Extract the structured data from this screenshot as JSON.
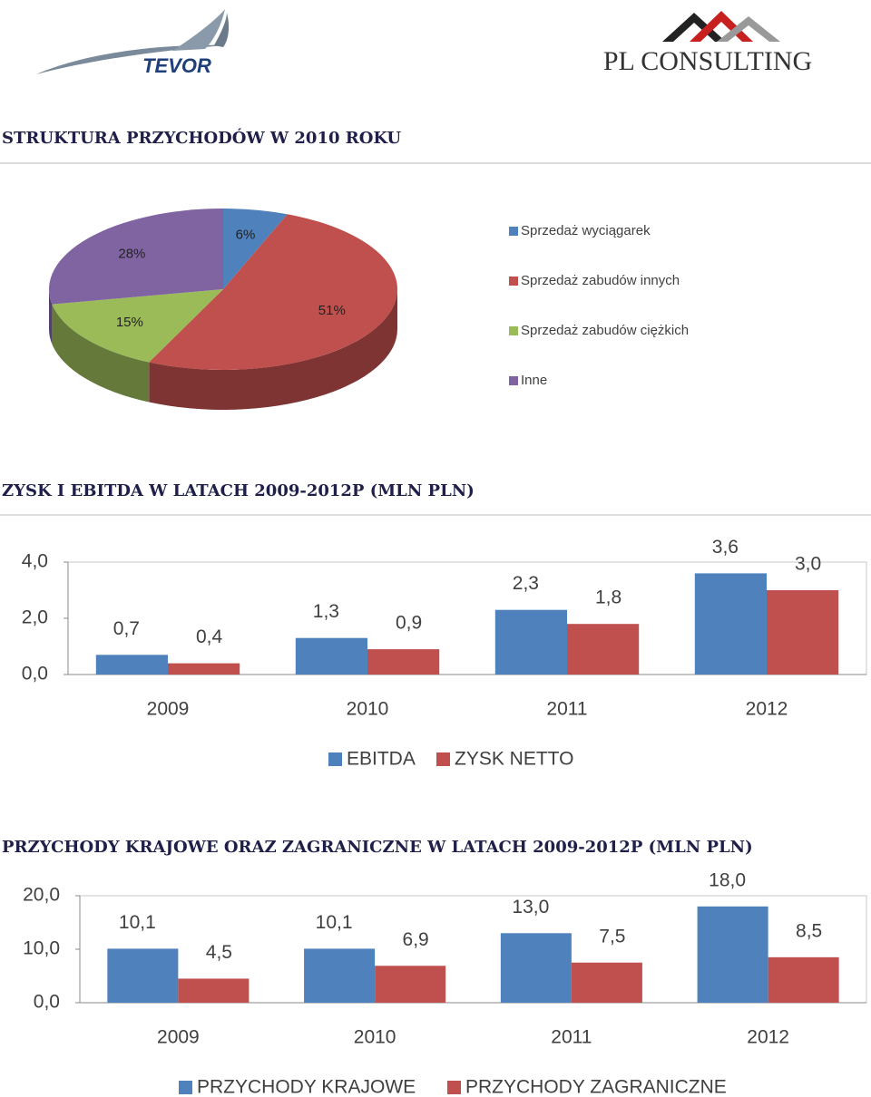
{
  "header": {
    "logo_left": "TEVOR",
    "logo_right": "PL CONSULTING"
  },
  "chart_data": [
    {
      "type": "pie",
      "title": "STRUKTURA PRZYCHODÓW W 2010 ROKU",
      "categories": [
        "Sprzedaż wyciągarek",
        "Sprzedaż zabudów innych",
        "Sprzedaż zabudów ciężkich",
        "Inne"
      ],
      "values": [
        6,
        51,
        15,
        28
      ],
      "value_labels": [
        "6%",
        "51%",
        "15%",
        "28%"
      ],
      "colors": [
        "#4f81bd",
        "#c0504d",
        "#9bbb59",
        "#8064a2"
      ],
      "legend": "right"
    },
    {
      "type": "bar",
      "title": "ZYSK I EBITDA W LATACH 2009-2012P (MLN PLN)",
      "categories": [
        "2009",
        "2010",
        "2011",
        "2012"
      ],
      "series": [
        {
          "name": "EBITDA",
          "color": "#4f81bd",
          "values": [
            0.7,
            1.3,
            2.3,
            3.6
          ],
          "value_labels": [
            "0,7",
            "1,3",
            "2,3",
            "3,6"
          ]
        },
        {
          "name": "ZYSK NETTO",
          "color": "#c0504d",
          "values": [
            0.4,
            0.9,
            1.8,
            3.0
          ],
          "value_labels": [
            "0,4",
            "0,9",
            "1,8",
            "3,0"
          ]
        }
      ],
      "ylim": [
        0,
        4
      ],
      "yticks": [
        {
          "value": 0,
          "label": "0,0"
        },
        {
          "value": 2,
          "label": "2,0"
        },
        {
          "value": 4,
          "label": "4,0"
        }
      ],
      "grid": false,
      "legend": "bottom"
    },
    {
      "type": "bar",
      "title": "PRZYCHODY KRAJOWE ORAZ ZAGRANICZNE W LATACH  2009-2012P (MLN PLN)",
      "categories": [
        "2009",
        "2010",
        "2011",
        "2012"
      ],
      "series": [
        {
          "name": "PRZYCHODY KRAJOWE",
          "color": "#4f81bd",
          "values": [
            10.1,
            10.1,
            13.0,
            18.0
          ],
          "value_labels": [
            "10,1",
            "10,1",
            "13,0",
            "18,0"
          ]
        },
        {
          "name": "PRZYCHODY ZAGRANICZNE",
          "color": "#c0504d",
          "values": [
            4.5,
            6.9,
            7.5,
            8.5
          ],
          "value_labels": [
            "4,5",
            "6,9",
            "7,5",
            "8,5"
          ]
        }
      ],
      "ylim": [
        0,
        20
      ],
      "yticks": [
        {
          "value": 0,
          "label": "0,0"
        },
        {
          "value": 10,
          "label": "10,0"
        },
        {
          "value": 20,
          "label": "20,0"
        }
      ],
      "grid": false,
      "legend": "bottom"
    }
  ]
}
